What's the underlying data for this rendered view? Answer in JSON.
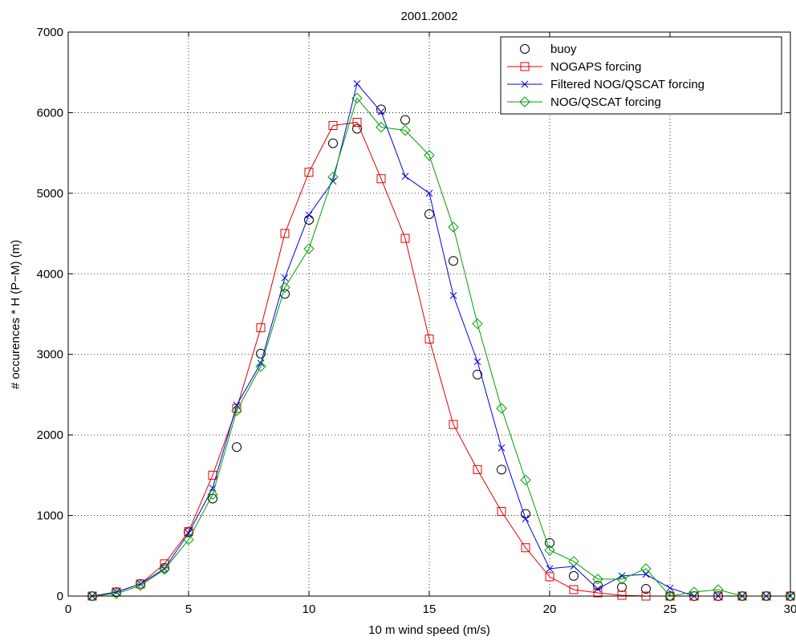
{
  "chart_data": {
    "type": "line",
    "title": "2001.2002",
    "xlabel": "10 m wind speed (m/s)",
    "ylabel": "# occurences * H (P−M) (m)",
    "xlim": [
      0,
      30
    ],
    "ylim": [
      0,
      7000
    ],
    "xticks": [
      0,
      5,
      10,
      15,
      20,
      25,
      30
    ],
    "yticks": [
      0,
      1000,
      2000,
      3000,
      4000,
      5000,
      6000,
      7000
    ],
    "grid": true,
    "legend_position": "top-right",
    "x": [
      1,
      2,
      3,
      4,
      5,
      6,
      7,
      8,
      9,
      10,
      11,
      12,
      13,
      14,
      15,
      16,
      17,
      18,
      19,
      20,
      21,
      22,
      23,
      24,
      25,
      26,
      27,
      28,
      29,
      30
    ],
    "series": [
      {
        "name": "buoy",
        "color": "#000000",
        "marker": "circle",
        "line": false,
        "values": [
          0,
          50,
          150,
          350,
          790,
          1210,
          1850,
          3010,
          3750,
          4670,
          5620,
          5800,
          6040,
          5910,
          4740,
          4160,
          2750,
          1570,
          1020,
          660,
          250,
          130,
          110,
          90,
          0,
          0,
          0,
          0,
          0,
          0
        ]
      },
      {
        "name": "NOGAPS forcing",
        "color": "#e00000",
        "marker": "square",
        "line": true,
        "values": [
          0,
          50,
          150,
          400,
          800,
          1500,
          2330,
          3330,
          4500,
          5260,
          5840,
          5880,
          5180,
          4440,
          3190,
          2130,
          1570,
          1050,
          600,
          240,
          80,
          40,
          10,
          0,
          0,
          0,
          0,
          0,
          0,
          0
        ]
      },
      {
        "name": "Filtered NOG/QSCAT forcing",
        "color": "#0000e0",
        "marker": "x",
        "line": true,
        "values": [
          0,
          50,
          150,
          340,
          780,
          1340,
          2370,
          2890,
          3950,
          4730,
          5150,
          6360,
          6010,
          5210,
          5000,
          3730,
          2910,
          1840,
          960,
          340,
          370,
          90,
          250,
          270,
          100,
          0,
          0,
          0,
          0,
          0
        ]
      },
      {
        "name": "NOG/QSCAT forcing",
        "color": "#00a000",
        "marker": "diamond",
        "line": true,
        "values": [
          0,
          30,
          130,
          330,
          700,
          1260,
          2300,
          2850,
          3830,
          4310,
          5200,
          6180,
          5820,
          5780,
          5470,
          4580,
          3380,
          2330,
          1440,
          570,
          430,
          210,
          210,
          340,
          0,
          50,
          80,
          0,
          0,
          0
        ]
      }
    ]
  }
}
